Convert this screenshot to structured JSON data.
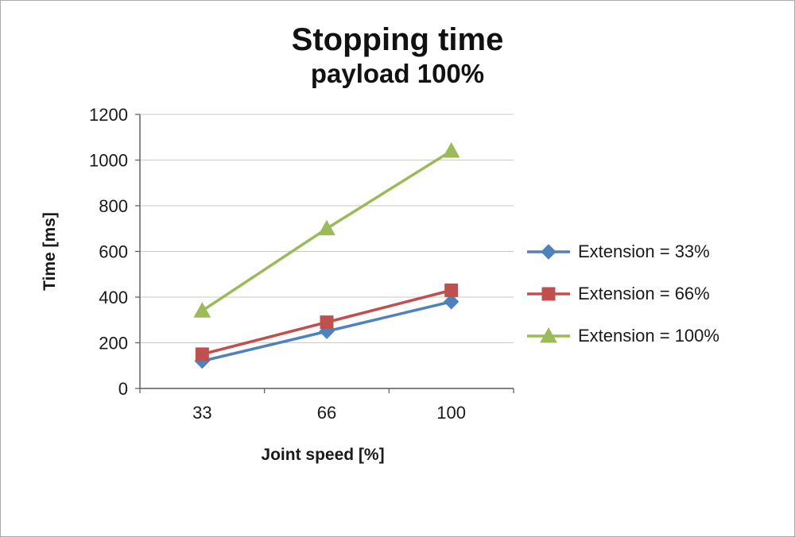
{
  "chart_data": {
    "type": "line",
    "title": "Stopping time",
    "subtitle": "payload 100%",
    "xlabel": "Joint speed [%]",
    "ylabel": "Time [ms]",
    "categories": [
      "33",
      "66",
      "100"
    ],
    "ylim": [
      0,
      1200
    ],
    "ytick_step": 200,
    "grid": true,
    "legend_position": "right",
    "colors": {
      "gridline": "#c9c9c9",
      "axis": "#595959"
    },
    "series": [
      {
        "name": "Extension = 33%",
        "values": [
          120,
          250,
          380
        ],
        "color": "#4f81bd",
        "marker": "diamond"
      },
      {
        "name": "Extension = 66%",
        "values": [
          150,
          290,
          430
        ],
        "color": "#c0504d",
        "marker": "square"
      },
      {
        "name": "Extension = 100%",
        "values": [
          340,
          700,
          1040
        ],
        "color": "#9bbb59",
        "marker": "triangle"
      }
    ]
  }
}
